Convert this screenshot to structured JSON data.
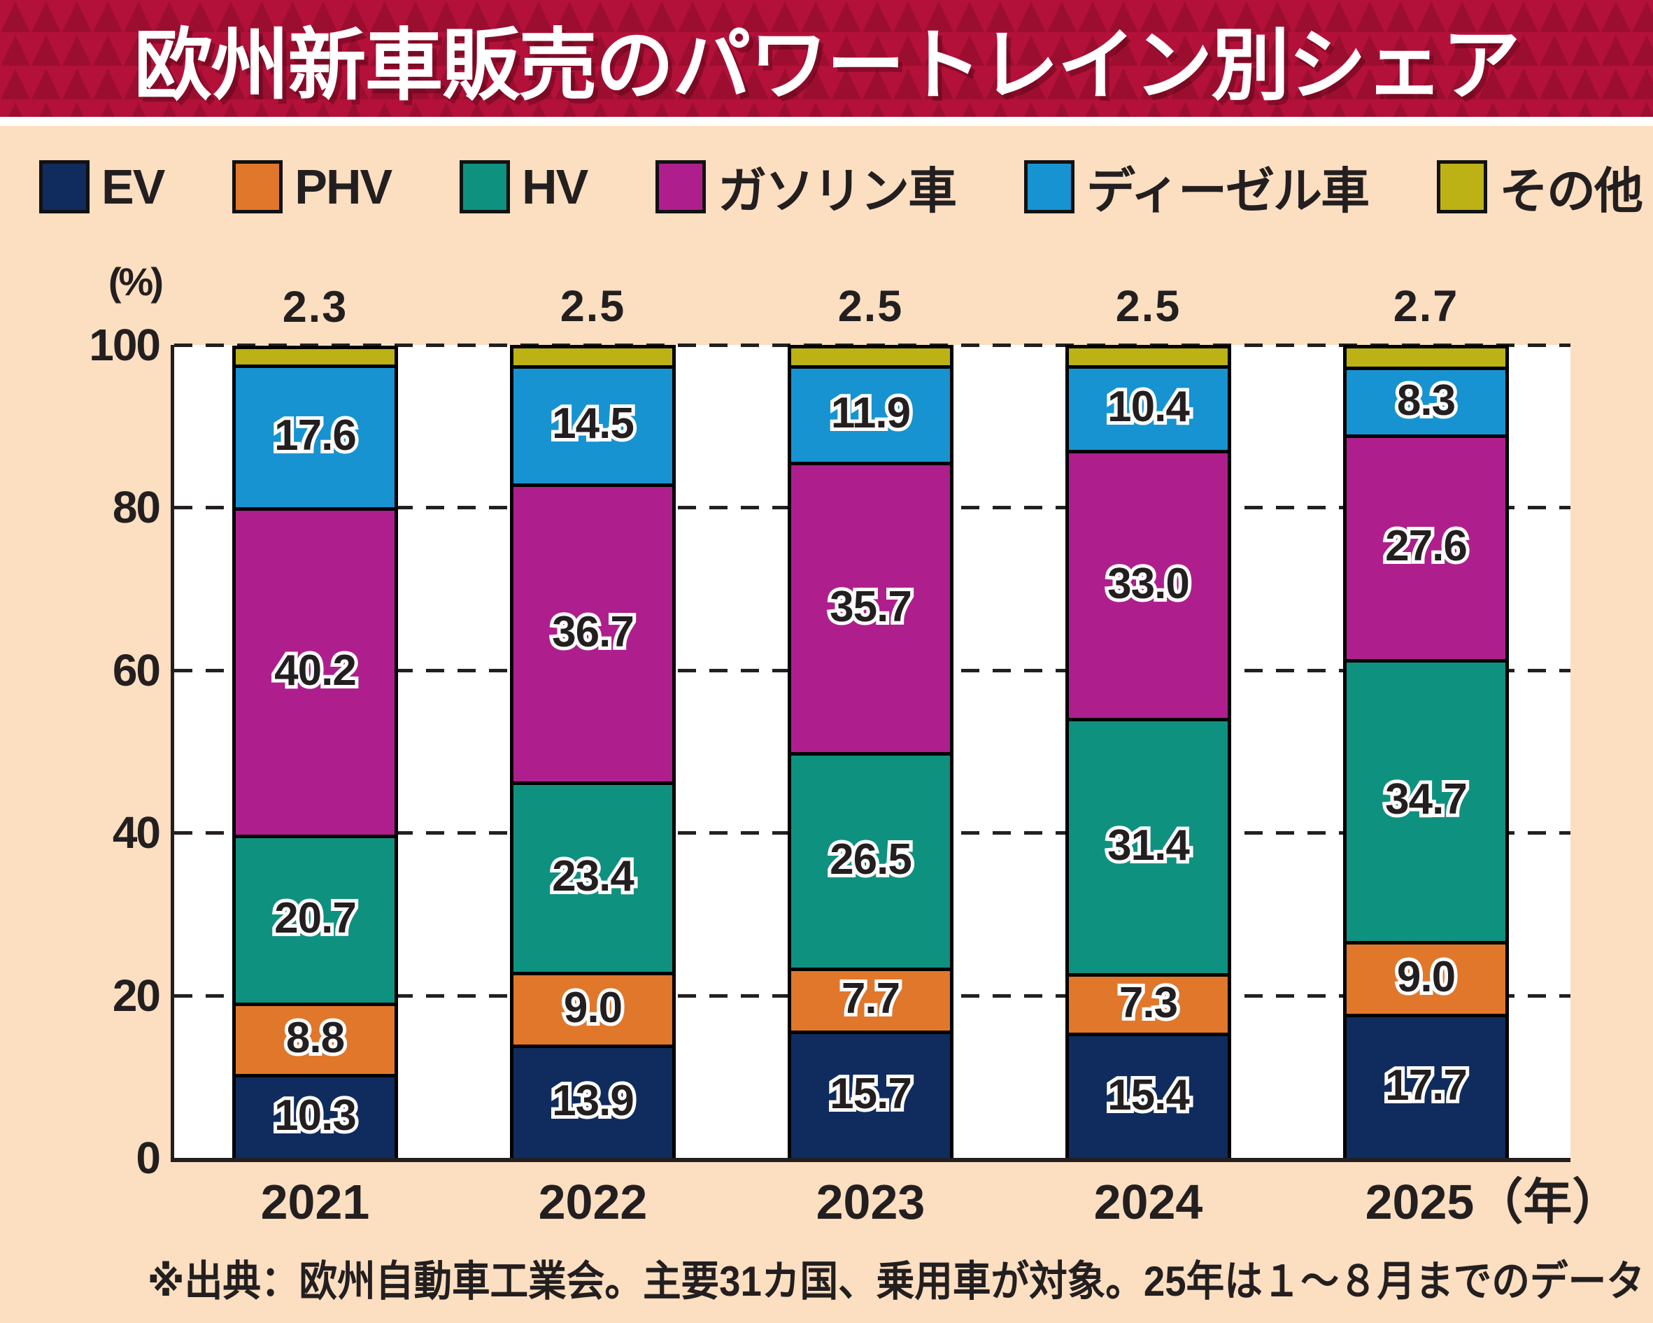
{
  "title": "欧州新車販売のパワートレイン別シェア",
  "unit_label": "(%)",
  "footnote": "※出典：欧州自動車工業会。主要31カ国、乗用車が対象。25年は１～８月までのデータ",
  "colors": {
    "header_base": "#b31139",
    "header_triangle": "#9c0e2f",
    "background": "#fcdec1",
    "plot_background": "#ffffff",
    "text": "#231f20"
  },
  "legend": [
    {
      "label": "EV",
      "color": "#102c5e"
    },
    {
      "label": "PHV",
      "color": "#e0772a"
    },
    {
      "label": "HV",
      "color": "#0f9180"
    },
    {
      "label": "ガソリン車",
      "color": "#ae1f8d"
    },
    {
      "label": "ディーゼル車",
      "color": "#1793d1"
    },
    {
      "label": "その他",
      "color": "#bcb115"
    }
  ],
  "chart_data": {
    "type": "bar",
    "stacked": true,
    "title": "欧州新車販売のパワートレイン別シェア",
    "categories": [
      "2021",
      "2022",
      "2023",
      "2024",
      "2025"
    ],
    "x_axis_suffix_last": "（年）",
    "series": [
      {
        "name": "EV",
        "color": "#102c5e",
        "values": [
          10.3,
          13.9,
          15.7,
          15.4,
          17.7
        ],
        "label_inside": true
      },
      {
        "name": "PHV",
        "color": "#e0772a",
        "values": [
          8.8,
          9.0,
          7.7,
          7.3,
          9.0
        ],
        "label_inside": true
      },
      {
        "name": "HV",
        "color": "#0f9180",
        "values": [
          20.7,
          23.4,
          26.5,
          31.4,
          34.7
        ],
        "label_inside": true
      },
      {
        "name": "ガソリン車",
        "color": "#ae1f8d",
        "values": [
          40.2,
          36.7,
          35.7,
          33.0,
          27.6
        ],
        "label_inside": true
      },
      {
        "name": "ディーゼル車",
        "color": "#1793d1",
        "values": [
          17.6,
          14.5,
          11.9,
          10.4,
          8.3
        ],
        "label_inside": true
      },
      {
        "name": "その他",
        "color": "#bcb115",
        "values": [
          2.3,
          2.5,
          2.5,
          2.5,
          2.7
        ],
        "label_inside": false,
        "label_above_bar": true
      }
    ],
    "ylabel": "(%)",
    "ylim": [
      0,
      100
    ],
    "y_ticks": [
      0,
      20,
      40,
      60,
      80,
      100
    ],
    "grid": "dashed horizontal",
    "legend_position": "top"
  }
}
